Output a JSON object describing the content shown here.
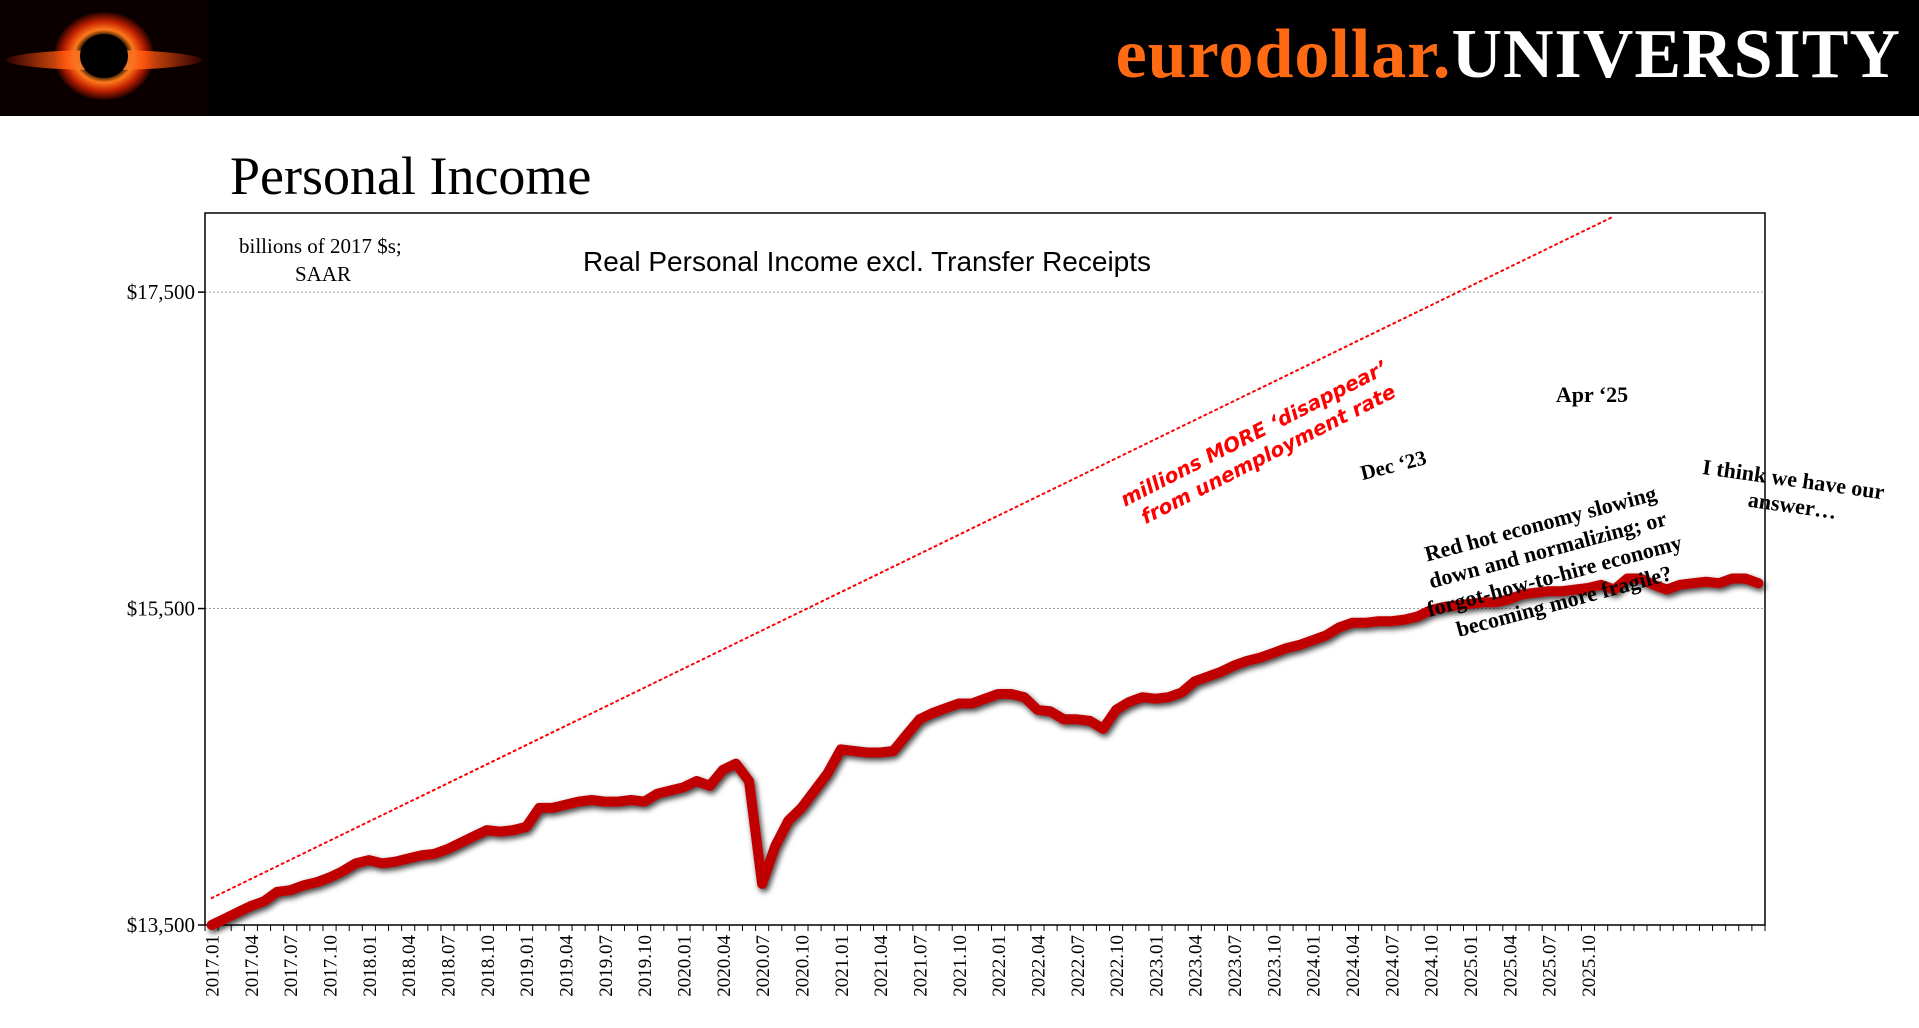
{
  "header": {
    "brand_orange": "eurodollar.",
    "brand_white": "UNIVERSITY",
    "logo_icon": "black-hole-logo-icon"
  },
  "page_title": "Personal Income",
  "colors": {
    "series": "#c00000",
    "trend": "#ff0000",
    "brand_orange": "#ff6a13"
  },
  "chart_data": {
    "type": "line",
    "title": "Personal Income",
    "units_note": [
      "billions of 2017 $s;",
      "SAAR"
    ],
    "legend": {
      "placement": "top-center"
    },
    "grid": true,
    "ylim": [
      13500,
      18000
    ],
    "y_ticks": [
      13500,
      15500,
      17500
    ],
    "y_tick_labels": [
      "$13,500",
      "$15,500",
      "$17,500"
    ],
    "x_tick_labels": [
      "2017.01",
      "2017.04",
      "2017.07",
      "2017.10",
      "2018.01",
      "2018.04",
      "2018.07",
      "2018.10",
      "2019.01",
      "2019.04",
      "2019.07",
      "2019.10",
      "2020.01",
      "2020.04",
      "2020.07",
      "2020.10",
      "2021.01",
      "2021.04",
      "2021.07",
      "2021.10",
      "2022.01",
      "2022.04",
      "2022.07",
      "2022.10",
      "2023.01",
      "2023.04",
      "2023.07",
      "2023.10",
      "2024.01",
      "2024.04",
      "2024.07",
      "2024.10",
      "2025.01",
      "2025.04",
      "2025.07",
      "2025.10"
    ],
    "series": [
      {
        "name": "Real Personal Income excl. Transfer Receipts",
        "start": "2017.01",
        "frequency": "monthly",
        "values": [
          13500,
          13540,
          13580,
          13620,
          13650,
          13710,
          13720,
          13750,
          13770,
          13800,
          13840,
          13890,
          13910,
          13890,
          13900,
          13920,
          13940,
          13950,
          13980,
          14020,
          14060,
          14100,
          14090,
          14100,
          14120,
          14240,
          14240,
          14260,
          14280,
          14290,
          14280,
          14280,
          14290,
          14280,
          14330,
          14350,
          14370,
          14410,
          14380,
          14480,
          14520,
          14410,
          13760,
          14000,
          14160,
          14240,
          14350,
          14460,
          14610,
          14600,
          14590,
          14590,
          14600,
          14700,
          14800,
          14840,
          14870,
          14900,
          14900,
          14930,
          14960,
          14960,
          14940,
          14860,
          14850,
          14800,
          14800,
          14790,
          14740,
          14860,
          14910,
          14940,
          14930,
          14940,
          14970,
          15040,
          15070,
          15100,
          15140,
          15170,
          15190,
          15220,
          15250,
          15270,
          15300,
          15330,
          15380,
          15410,
          15410,
          15420,
          15420,
          15430,
          15450,
          15490,
          15510,
          15520,
          15530,
          15540,
          15540,
          15560,
          15590,
          15600,
          15610,
          15610,
          15620,
          15630,
          15650,
          15620,
          15690,
          15690,
          15650,
          15620,
          15650,
          15660,
          15670,
          15660,
          15690,
          15690,
          15660
        ]
      },
      {
        "name": "trend",
        "x": [
          "2017.01",
          "2025.12"
        ],
        "values": [
          13670,
          17980
        ]
      }
    ],
    "annotations": [
      {
        "text": [
          "millions MORE ‘disappear’",
          "from unemployment rate"
        ],
        "color": "red"
      },
      {
        "text": [
          "Dec ‘23"
        ],
        "x": "2023.12"
      },
      {
        "text": [
          "Apr ‘25"
        ],
        "x": "2025.04"
      },
      {
        "text": [
          "Red hot economy slowing",
          "down and normalizing; or",
          "forgot-how-to-hire economy",
          "becoming more fragile?"
        ]
      },
      {
        "text": [
          "I think we have our",
          "answer…"
        ]
      }
    ]
  }
}
